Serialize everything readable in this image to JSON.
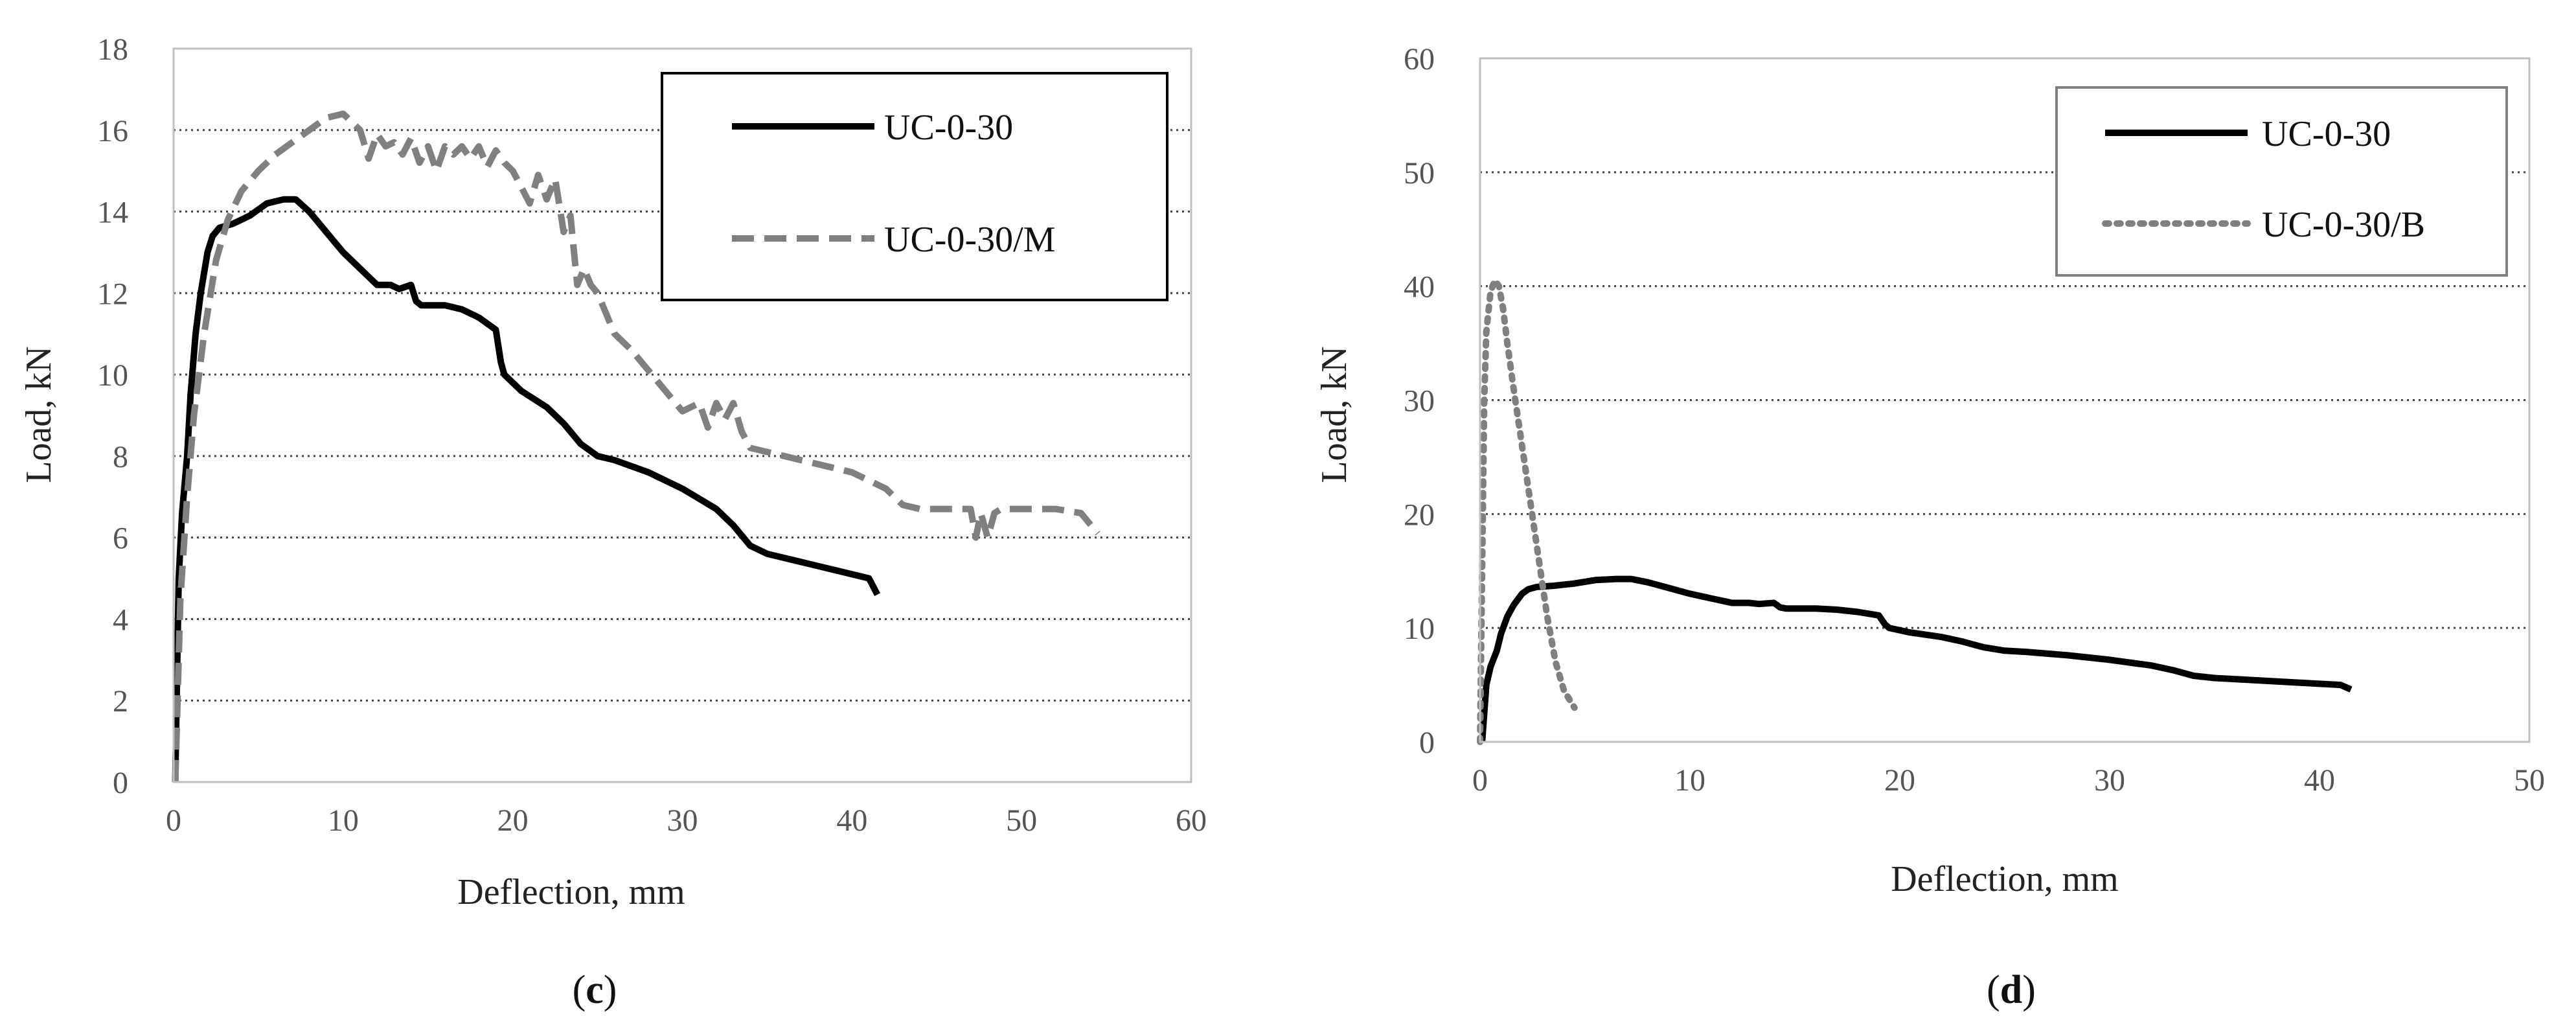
{
  "chart_data": [
    {
      "type": "line",
      "xlabel": "Deflection, mm",
      "ylabel": "Load, kN",
      "xlim": [
        0,
        60
      ],
      "ylim": [
        0,
        18
      ],
      "xticks": [
        "0",
        "10",
        "20",
        "30",
        "40",
        "50",
        "60"
      ],
      "yticks": [
        "0",
        "2",
        "4",
        "6",
        "8",
        "10",
        "12",
        "14",
        "16",
        "18"
      ],
      "grid": "horizontal dotted",
      "legend": "top-right",
      "caption": {
        "open": "(",
        "letter": "c",
        "close": ")"
      },
      "series": [
        {
          "name": "UC-0-30",
          "color": "#000000",
          "style": "solid",
          "x": [
            0.1,
            0.3,
            0.5,
            0.8,
            1.0,
            1.3,
            1.6,
            2.0,
            2.3,
            2.7,
            3.5,
            4.5,
            5.5,
            6.5,
            7.2,
            8.0,
            9.0,
            10.0,
            11.0,
            12.0,
            12.8,
            13.3,
            14.0,
            14.3,
            14.6,
            16.0,
            17.0,
            18.0,
            19.0,
            19.3,
            19.5,
            20.5,
            22.0,
            23.0,
            24.0,
            25.0,
            26.0,
            28.0,
            30.0,
            32.0,
            33.0,
            34.0,
            35.0,
            37.0,
            39.0,
            41.0,
            41.5
          ],
          "y": [
            0.0,
            5.0,
            6.6,
            8.0,
            9.5,
            11.0,
            12.0,
            13.0,
            13.4,
            13.6,
            13.7,
            13.9,
            14.2,
            14.3,
            14.3,
            14.0,
            13.5,
            13.0,
            12.6,
            12.2,
            12.2,
            12.1,
            12.2,
            11.8,
            11.7,
            11.7,
            11.6,
            11.4,
            11.1,
            10.3,
            10.0,
            9.6,
            9.2,
            8.8,
            8.3,
            8.0,
            7.9,
            7.6,
            7.2,
            6.7,
            6.3,
            5.8,
            5.6,
            5.4,
            5.2,
            5.0,
            4.6
          ]
        },
        {
          "name": "UC-0-30/M",
          "color": "#808080",
          "style": "dashed",
          "x": [
            0.1,
            0.4,
            0.8,
            1.2,
            1.8,
            2.5,
            3.2,
            4.0,
            5.0,
            6.0,
            7.0,
            8.0,
            9.0,
            10.0,
            10.5,
            11.0,
            11.5,
            12.0,
            12.5,
            13.0,
            13.5,
            14.0,
            14.5,
            15.0,
            15.5,
            16.0,
            16.5,
            17.0,
            17.5,
            18.0,
            18.5,
            19.0,
            19.5,
            20.0,
            20.5,
            21.0,
            21.5,
            22.0,
            22.5,
            23.0,
            23.4,
            23.8,
            24.2,
            24.6,
            25.0,
            25.5,
            26.0,
            27.0,
            28.0,
            29.0,
            30.0,
            31.0,
            31.5,
            32.0,
            32.5,
            33.0,
            33.5,
            34.0,
            36.0,
            38.0,
            40.0,
            42.0,
            43.0,
            44.0,
            45.0,
            46.0,
            47.0,
            47.3,
            47.6,
            48.0,
            48.4,
            48.8,
            50.0,
            52.0,
            53.5,
            54.5
          ],
          "y": [
            0.0,
            4.5,
            7.0,
            9.0,
            11.0,
            12.8,
            13.8,
            14.5,
            15.0,
            15.4,
            15.7,
            16.0,
            16.3,
            16.4,
            16.2,
            16.0,
            15.3,
            15.9,
            15.6,
            15.7,
            15.4,
            15.8,
            15.2,
            15.6,
            15.0,
            15.6,
            15.4,
            15.6,
            15.3,
            15.6,
            15.1,
            15.5,
            15.2,
            15.0,
            14.6,
            14.2,
            14.9,
            14.3,
            14.8,
            13.5,
            13.9,
            12.2,
            12.6,
            12.2,
            12.0,
            11.5,
            11.0,
            10.6,
            10.1,
            9.6,
            9.1,
            9.3,
            8.7,
            9.3,
            8.9,
            9.3,
            8.6,
            8.2,
            8.0,
            7.8,
            7.6,
            7.2,
            6.8,
            6.7,
            6.7,
            6.7,
            6.7,
            6.0,
            6.6,
            6.0,
            6.6,
            6.7,
            6.7,
            6.7,
            6.6,
            6.1
          ]
        }
      ]
    },
    {
      "type": "line",
      "xlabel": "Deflection, mm",
      "ylabel": "Load, kN",
      "xlim": [
        0,
        50
      ],
      "ylim": [
        0,
        60
      ],
      "xticks": [
        "0",
        "10",
        "20",
        "30",
        "40",
        "50"
      ],
      "yticks": [
        "0",
        "10",
        "20",
        "30",
        "40",
        "50",
        "60"
      ],
      "grid": "horizontal dotted",
      "legend": "top-right",
      "caption": {
        "open": "(",
        "letter": "d",
        "close": ")"
      },
      "series": [
        {
          "name": "UC-0-30",
          "color": "#000000",
          "style": "solid",
          "x": [
            0.1,
            0.3,
            0.5,
            0.8,
            1.0,
            1.3,
            1.6,
            2.0,
            2.3,
            2.7,
            3.5,
            4.5,
            5.5,
            6.5,
            7.2,
            8.0,
            9.0,
            10.0,
            11.0,
            12.0,
            12.8,
            13.3,
            14.0,
            14.3,
            14.6,
            16.0,
            17.0,
            18.0,
            19.0,
            19.3,
            19.5,
            20.5,
            22.0,
            23.0,
            24.0,
            25.0,
            26.0,
            28.0,
            30.0,
            32.0,
            33.0,
            34.0,
            35.0,
            37.0,
            39.0,
            41.0,
            41.5
          ],
          "y": [
            0.0,
            5.0,
            6.6,
            8.0,
            9.5,
            11.0,
            12.0,
            13.0,
            13.4,
            13.6,
            13.7,
            13.9,
            14.2,
            14.3,
            14.3,
            14.0,
            13.5,
            13.0,
            12.6,
            12.2,
            12.2,
            12.1,
            12.2,
            11.8,
            11.7,
            11.7,
            11.6,
            11.4,
            11.1,
            10.3,
            10.0,
            9.6,
            9.2,
            8.8,
            8.3,
            8.0,
            7.9,
            7.6,
            7.2,
            6.7,
            6.3,
            5.8,
            5.6,
            5.4,
            5.2,
            5.0,
            4.6
          ]
        },
        {
          "name": "UC-0-30/B",
          "color": "#808080",
          "style": "dotted",
          "x": [
            0.0,
            0.1,
            0.2,
            0.3,
            0.5,
            0.7,
            0.9,
            1.1,
            1.3,
            1.6,
            2.0,
            2.4,
            2.8,
            3.2,
            3.6,
            4.0,
            4.5
          ],
          "y": [
            0.0,
            15.0,
            30.0,
            36.0,
            39.5,
            40.5,
            40.0,
            38.0,
            35.0,
            31.0,
            26.0,
            21.0,
            16.0,
            11.0,
            7.0,
            4.5,
            3.0
          ]
        }
      ]
    }
  ]
}
